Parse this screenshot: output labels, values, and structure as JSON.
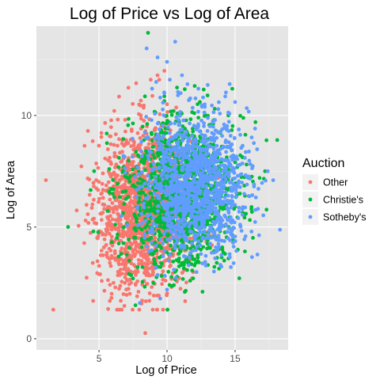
{
  "chart_data": {
    "type": "scatter",
    "title": "Log of Price vs Log of Area",
    "xlabel": "Log of Price",
    "ylabel": "Log of Area",
    "xlim": [
      0.4,
      18.9
    ],
    "ylim": [
      -0.5,
      14.0
    ],
    "x_ticks": [
      5,
      10,
      15
    ],
    "y_ticks": [
      0,
      5,
      10
    ],
    "x_tick_labels": [
      "5",
      "10",
      "15"
    ],
    "y_tick_labels": [
      "0",
      "5",
      "10"
    ],
    "grid": true,
    "panel_background": "#e5e5e5",
    "legend": {
      "title": "Auction",
      "position": "right",
      "entries": [
        "Other",
        "Christie's",
        "Sotheby's"
      ]
    },
    "series": [
      {
        "name": "Other",
        "color": "#f8766d",
        "cluster": {
          "x_center": 8.3,
          "x_spread": 1.7,
          "y_center": 5.8,
          "y_spread": 1.8,
          "n": 1500
        },
        "points": [
          [
            1.1,
            7.1
          ],
          [
            4.8,
            7.1
          ],
          [
            4.9,
            4.5
          ],
          [
            5.1,
            5.6
          ],
          [
            5.6,
            4.8
          ],
          [
            5.8,
            3.4
          ],
          [
            6.2,
            2.3
          ],
          [
            6.6,
            1.7
          ],
          [
            6.8,
            2.0
          ],
          [
            8.4,
            0.25
          ],
          [
            8.7,
            1.7
          ],
          [
            7.4,
            9.3
          ],
          [
            7.0,
            8.9
          ],
          [
            8.8,
            11.6
          ],
          [
            9.3,
            11.8
          ],
          [
            10.0,
            10.5
          ],
          [
            10.5,
            10.2
          ],
          [
            6.4,
            3.0
          ],
          [
            5.4,
            6.0
          ],
          [
            7.8,
            1.9
          ],
          [
            9.8,
            12.0
          ],
          [
            12.8,
            9.1
          ],
          [
            13.4,
            8.0
          ],
          [
            6.9,
            2.5
          ]
        ]
      },
      {
        "name": "Christie's",
        "color": "#00ba38",
        "cluster": {
          "x_center": 11.0,
          "x_spread": 2.0,
          "y_center": 6.5,
          "y_spread": 1.7,
          "n": 1300
        },
        "points": [
          [
            8.6,
            13.7
          ],
          [
            8.2,
            9.5
          ],
          [
            6.0,
            6.5
          ],
          [
            7.5,
            2.7
          ],
          [
            9.0,
            2.5
          ],
          [
            10.5,
            2.4
          ],
          [
            11.7,
            2.6
          ],
          [
            13.0,
            3.3
          ],
          [
            14.2,
            3.5
          ],
          [
            15.8,
            5.6
          ],
          [
            16.2,
            5.8
          ],
          [
            16.8,
            7.2
          ],
          [
            17.2,
            7.5
          ],
          [
            18.1,
            8.9
          ],
          [
            16.5,
            9.7
          ],
          [
            12.0,
            10.1
          ],
          [
            12.3,
            9.9
          ],
          [
            13.5,
            10.3
          ],
          [
            14.5,
            10.0
          ],
          [
            15.0,
            7.9
          ],
          [
            8.3,
            8.9
          ],
          [
            7.2,
            2.9
          ],
          [
            11.3,
            2.1
          ],
          [
            13.8,
            4.0
          ],
          [
            10.1,
            3.0
          ]
        ]
      },
      {
        "name": "Sotheby's",
        "color": "#619cff",
        "cluster": {
          "x_center": 12.2,
          "x_spread": 1.9,
          "y_center": 6.9,
          "y_spread": 1.5,
          "n": 1300
        },
        "points": [
          [
            8.5,
            13.0
          ],
          [
            9.3,
            12.6
          ],
          [
            10.0,
            12.4
          ],
          [
            10.6,
            13.3
          ],
          [
            11.1,
            11.8
          ],
          [
            12.3,
            11.2
          ],
          [
            9.2,
            11.5
          ],
          [
            9.8,
            11.0
          ],
          [
            10.2,
            11.6
          ],
          [
            8.9,
            11.2
          ],
          [
            9.5,
            10.8
          ],
          [
            10.8,
            10.9
          ],
          [
            11.5,
            11.4
          ],
          [
            8.0,
            1.6
          ],
          [
            9.5,
            1.8
          ],
          [
            10.0,
            2.2
          ],
          [
            14.3,
            8.8
          ],
          [
            15.2,
            7.3
          ],
          [
            17.4,
            7.5
          ],
          [
            17.8,
            7.1
          ],
          [
            15.0,
            10.6
          ],
          [
            13.2,
            9.0
          ],
          [
            14.0,
            6.8
          ],
          [
            12.8,
            6.6
          ],
          [
            11.0,
            11.0
          ]
        ]
      }
    ]
  }
}
